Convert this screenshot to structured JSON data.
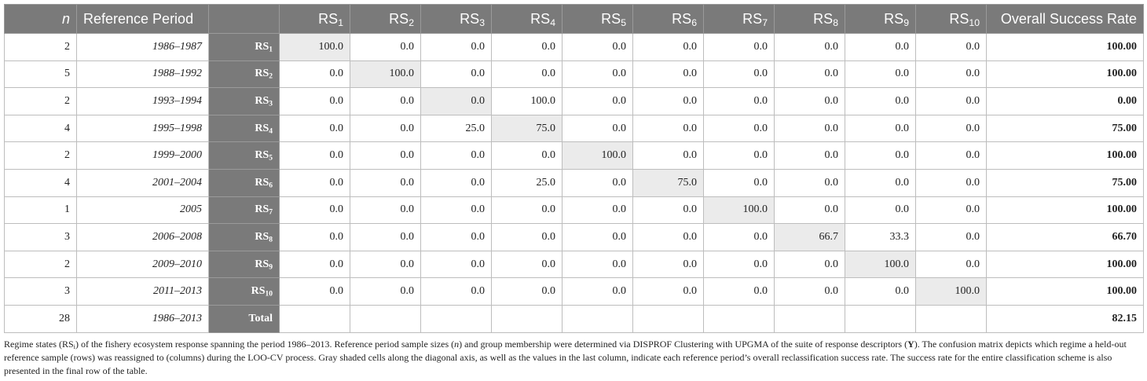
{
  "table": {
    "headers": {
      "n": "n",
      "period": "Reference Period",
      "blank": "",
      "cols": [
        {
          "base": "RS",
          "sub": "1"
        },
        {
          "base": "RS",
          "sub": "2"
        },
        {
          "base": "RS",
          "sub": "3"
        },
        {
          "base": "RS",
          "sub": "4"
        },
        {
          "base": "RS",
          "sub": "5"
        },
        {
          "base": "RS",
          "sub": "6"
        },
        {
          "base": "RS",
          "sub": "7"
        },
        {
          "base": "RS",
          "sub": "8"
        },
        {
          "base": "RS",
          "sub": "9"
        },
        {
          "base": "RS",
          "sub": "10"
        }
      ],
      "overall": "Overall Success Rate"
    },
    "rows": [
      {
        "n": "2",
        "period": "1986–1987",
        "label": {
          "base": "RS",
          "sub": "1"
        },
        "diag": 0,
        "values": [
          "100.0",
          "0.0",
          "0.0",
          "0.0",
          "0.0",
          "0.0",
          "0.0",
          "0.0",
          "0.0",
          "0.0"
        ],
        "overall": "100.00"
      },
      {
        "n": "5",
        "period": "1988–1992",
        "label": {
          "base": "RS",
          "sub": "2"
        },
        "diag": 1,
        "values": [
          "0.0",
          "100.0",
          "0.0",
          "0.0",
          "0.0",
          "0.0",
          "0.0",
          "0.0",
          "0.0",
          "0.0"
        ],
        "overall": "100.00"
      },
      {
        "n": "2",
        "period": "1993–1994",
        "label": {
          "base": "RS",
          "sub": "3"
        },
        "diag": 2,
        "values": [
          "0.0",
          "0.0",
          "0.0",
          "100.0",
          "0.0",
          "0.0",
          "0.0",
          "0.0",
          "0.0",
          "0.0"
        ],
        "overall": "0.00"
      },
      {
        "n": "4",
        "period": "1995–1998",
        "label": {
          "base": "RS",
          "sub": "4"
        },
        "diag": 3,
        "values": [
          "0.0",
          "0.0",
          "25.0",
          "75.0",
          "0.0",
          "0.0",
          "0.0",
          "0.0",
          "0.0",
          "0.0"
        ],
        "overall": "75.00"
      },
      {
        "n": "2",
        "period": "1999–2000",
        "label": {
          "base": "RS",
          "sub": "5"
        },
        "diag": 4,
        "values": [
          "0.0",
          "0.0",
          "0.0",
          "0.0",
          "100.0",
          "0.0",
          "0.0",
          "0.0",
          "0.0",
          "0.0"
        ],
        "overall": "100.00"
      },
      {
        "n": "4",
        "period": "2001–2004",
        "label": {
          "base": "RS",
          "sub": "6"
        },
        "diag": 5,
        "values": [
          "0.0",
          "0.0",
          "0.0",
          "25.0",
          "0.0",
          "75.0",
          "0.0",
          "0.0",
          "0.0",
          "0.0"
        ],
        "overall": "75.00"
      },
      {
        "n": "1",
        "period": "2005",
        "label": {
          "base": "RS",
          "sub": "7"
        },
        "diag": 6,
        "values": [
          "0.0",
          "0.0",
          "0.0",
          "0.0",
          "0.0",
          "0.0",
          "100.0",
          "0.0",
          "0.0",
          "0.0"
        ],
        "overall": "100.00"
      },
      {
        "n": "3",
        "period": "2006–2008",
        "label": {
          "base": "RS",
          "sub": "8"
        },
        "diag": 7,
        "values": [
          "0.0",
          "0.0",
          "0.0",
          "0.0",
          "0.0",
          "0.0",
          "0.0",
          "66.7",
          "33.3",
          "0.0"
        ],
        "overall": "66.70"
      },
      {
        "n": "2",
        "period": "2009–2010",
        "label": {
          "base": "RS",
          "sub": "9"
        },
        "diag": 8,
        "values": [
          "0.0",
          "0.0",
          "0.0",
          "0.0",
          "0.0",
          "0.0",
          "0.0",
          "0.0",
          "100.0",
          "0.0"
        ],
        "overall": "100.00"
      },
      {
        "n": "3",
        "period": "2011–2013",
        "label": {
          "base": "RS",
          "sub": "10"
        },
        "diag": 9,
        "values": [
          "0.0",
          "0.0",
          "0.0",
          "0.0",
          "0.0",
          "0.0",
          "0.0",
          "0.0",
          "0.0",
          "100.0"
        ],
        "overall": "100.00"
      }
    ],
    "total": {
      "n": "28",
      "period": "1986–2013",
      "label": "Total",
      "overall": "82.15"
    }
  },
  "caption": [
    {
      "t": "Regime states (RS"
    },
    {
      "t": "i",
      "s": "sub"
    },
    {
      "t": ") of the fishery ecosystem response spanning the period 1986–2013. Reference period sample sizes ("
    },
    {
      "t": "n",
      "s": "i"
    },
    {
      "t": ") and group membership were determined via DISPROF Clustering with UPGMA of the suite of response descriptors ("
    },
    {
      "t": "Y",
      "s": "b"
    },
    {
      "t": "). The confusion matrix depicts which regime a held-out reference sample (rows) was reassigned to (columns) during the LOO-CV process. Gray shaded cells along the diagonal axis, as well as the values in the last column, indicate each reference period’s overall reclassification success rate. The success rate for the entire classification scheme is also presented in the final row of the table."
    }
  ]
}
